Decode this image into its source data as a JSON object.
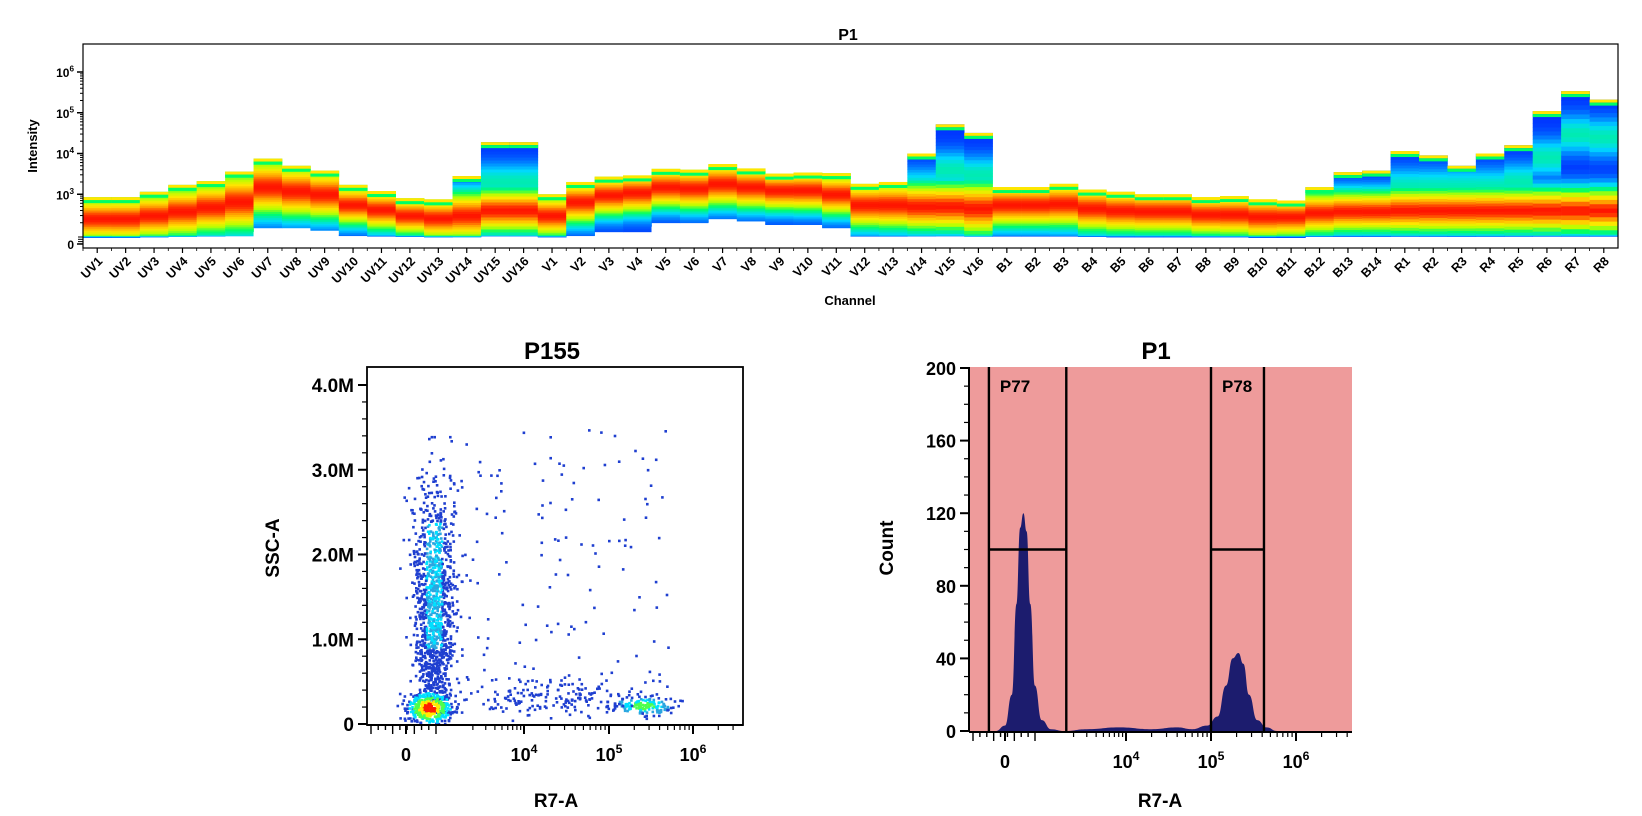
{
  "chart_data": [
    {
      "type": "heatmap",
      "title": "P1",
      "xlabel": "Channel",
      "ylabel": "Intensity",
      "y_scale": "biexponential",
      "y_ticks": [
        {
          "label": "0",
          "value": 0
        },
        {
          "label": "10",
          "sup": "3",
          "value": 1000
        },
        {
          "label": "10",
          "sup": "4",
          "value": 10000
        },
        {
          "label": "10",
          "sup": "5",
          "value": 100000
        },
        {
          "label": "10",
          "sup": "6",
          "value": 1000000
        }
      ],
      "ylim": [
        -100,
        4000000
      ],
      "colormap": [
        "#0033ff",
        "#00d8ff",
        "#00ff66",
        "#b8ff00",
        "#ffe600",
        "#ff9a00",
        "#ff1400"
      ],
      "categories": [
        "UV1",
        "UV2",
        "UV3",
        "UV4",
        "UV5",
        "UV6",
        "UV7",
        "UV8",
        "UV9",
        "UV10",
        "UV11",
        "UV12",
        "UV13",
        "UV14",
        "UV15",
        "UV16",
        "V1",
        "V2",
        "V3",
        "V4",
        "V5",
        "V6",
        "V7",
        "V8",
        "V9",
        "V10",
        "V11",
        "V12",
        "V13",
        "V14",
        "V15",
        "V16",
        "B1",
        "B2",
        "B3",
        "B4",
        "B5",
        "B6",
        "B7",
        "B8",
        "B9",
        "B10",
        "B11",
        "B12",
        "B13",
        "B14",
        "R1",
        "R2",
        "R3",
        "R4",
        "R5",
        "R6",
        "R7",
        "R8"
      ],
      "channels": [
        {
          "lo": 30,
          "p25": 120,
          "med": 250,
          "p75": 420,
          "hi": 850,
          "sec": 0
        },
        {
          "lo": 30,
          "p25": 120,
          "med": 250,
          "p75": 430,
          "hi": 850,
          "sec": 0
        },
        {
          "lo": 40,
          "p25": 150,
          "med": 300,
          "p75": 550,
          "hi": 1150,
          "sec": 0
        },
        {
          "lo": 50,
          "p25": 180,
          "med": 380,
          "p75": 750,
          "hi": 1700,
          "sec": 0
        },
        {
          "lo": 60,
          "p25": 220,
          "med": 480,
          "p75": 950,
          "hi": 2100,
          "sec": 0
        },
        {
          "lo": 70,
          "p25": 280,
          "med": 650,
          "p75": 1500,
          "hi": 3600,
          "sec": 0
        },
        {
          "lo": 150,
          "p25": 600,
          "med": 1500,
          "p75": 3000,
          "hi": 7500,
          "sec": 0
        },
        {
          "lo": 150,
          "p25": 500,
          "med": 1200,
          "p75": 2300,
          "hi": 5000,
          "sec": 0
        },
        {
          "lo": 130,
          "p25": 450,
          "med": 1000,
          "p75": 1900,
          "hi": 3800,
          "sec": 0
        },
        {
          "lo": 80,
          "p25": 280,
          "med": 550,
          "p75": 900,
          "hi": 1700,
          "sec": 0
        },
        {
          "lo": 60,
          "p25": 200,
          "med": 420,
          "p75": 650,
          "hi": 1200,
          "sec": 0
        },
        {
          "lo": 50,
          "p25": 150,
          "med": 300,
          "p75": 450,
          "hi": 800,
          "sec": 0
        },
        {
          "lo": 40,
          "p25": 120,
          "med": 260,
          "p75": 400,
          "hi": 750,
          "sec": 0
        },
        {
          "lo": 40,
          "p25": 150,
          "med": 300,
          "p75": 600,
          "hi": 2800,
          "sec": 0
        },
        {
          "lo": 60,
          "p25": 200,
          "med": 400,
          "p75": 700,
          "hi": 19000,
          "sec": 2000
        },
        {
          "lo": 60,
          "p25": 200,
          "med": 400,
          "p75": 700,
          "hi": 19000,
          "sec": 2000
        },
        {
          "lo": 40,
          "p25": 150,
          "med": 300,
          "p75": 500,
          "hi": 1000,
          "sec": 0
        },
        {
          "lo": 80,
          "p25": 300,
          "med": 650,
          "p75": 1050,
          "hi": 2000,
          "sec": 0
        },
        {
          "lo": 120,
          "p25": 450,
          "med": 950,
          "p75": 1500,
          "hi": 2700,
          "sec": 0
        },
        {
          "lo": 120,
          "p25": 500,
          "med": 1100,
          "p75": 1700,
          "hi": 2900,
          "sec": 0
        },
        {
          "lo": 200,
          "p25": 700,
          "med": 1500,
          "p75": 2400,
          "hi": 4200,
          "sec": 0
        },
        {
          "lo": 200,
          "p25": 650,
          "med": 1400,
          "p75": 2300,
          "hi": 4000,
          "sec": 0
        },
        {
          "lo": 250,
          "p25": 800,
          "med": 1800,
          "p75": 3000,
          "hi": 5500,
          "sec": 0
        },
        {
          "lo": 220,
          "p25": 700,
          "med": 1500,
          "p75": 2500,
          "hi": 4300,
          "sec": 0
        },
        {
          "lo": 180,
          "p25": 600,
          "med": 1250,
          "p75": 1950,
          "hi": 3200,
          "sec": 0
        },
        {
          "lo": 180,
          "p25": 600,
          "med": 1250,
          "p75": 2000,
          "hi": 3400,
          "sec": 0
        },
        {
          "lo": 150,
          "p25": 500,
          "med": 1000,
          "p75": 1700,
          "hi": 3300,
          "sec": 0
        },
        {
          "lo": 60,
          "p25": 250,
          "med": 550,
          "p75": 950,
          "hi": 1800,
          "sec": 0
        },
        {
          "lo": 60,
          "p25": 250,
          "med": 550,
          "p75": 1000,
          "hi": 2000,
          "sec": 0
        },
        {
          "lo": 60,
          "p25": 250,
          "med": 500,
          "p75": 1000,
          "hi": 10000,
          "sec": 1500
        },
        {
          "lo": 60,
          "p25": 250,
          "med": 500,
          "p75": 1000,
          "hi": 52000,
          "sec": 4000
        },
        {
          "lo": 50,
          "p25": 200,
          "med": 450,
          "p75": 900,
          "hi": 32000,
          "sec": 3000
        },
        {
          "lo": 60,
          "p25": 250,
          "med": 550,
          "p75": 900,
          "hi": 1500,
          "sec": 0
        },
        {
          "lo": 60,
          "p25": 250,
          "med": 550,
          "p75": 900,
          "hi": 1500,
          "sec": 0
        },
        {
          "lo": 60,
          "p25": 250,
          "med": 580,
          "p75": 950,
          "hi": 1800,
          "sec": 0
        },
        {
          "lo": 50,
          "p25": 200,
          "med": 450,
          "p75": 750,
          "hi": 1300,
          "sec": 0
        },
        {
          "lo": 40,
          "p25": 180,
          "med": 400,
          "p75": 650,
          "hi": 1150,
          "sec": 0
        },
        {
          "lo": 40,
          "p25": 170,
          "med": 380,
          "p75": 600,
          "hi": 1000,
          "sec": 0
        },
        {
          "lo": 40,
          "p25": 170,
          "med": 380,
          "p75": 600,
          "hi": 1000,
          "sec": 0
        },
        {
          "lo": 40,
          "p25": 150,
          "med": 320,
          "p75": 500,
          "hi": 850,
          "sec": 0
        },
        {
          "lo": 40,
          "p25": 150,
          "med": 320,
          "p75": 520,
          "hi": 900,
          "sec": 0
        },
        {
          "lo": 30,
          "p25": 130,
          "med": 280,
          "p75": 450,
          "hi": 750,
          "sec": 0
        },
        {
          "lo": 30,
          "p25": 130,
          "med": 280,
          "p75": 420,
          "hi": 700,
          "sec": 0
        },
        {
          "lo": 50,
          "p25": 180,
          "med": 350,
          "p75": 600,
          "hi": 1500,
          "sec": 0
        },
        {
          "lo": 50,
          "p25": 200,
          "med": 380,
          "p75": 650,
          "hi": 3500,
          "sec": 0
        },
        {
          "lo": 50,
          "p25": 200,
          "med": 380,
          "p75": 650,
          "hi": 3800,
          "sec": 0
        },
        {
          "lo": 50,
          "p25": 200,
          "med": 400,
          "p75": 700,
          "hi": 11500,
          "sec": 1500
        },
        {
          "lo": 50,
          "p25": 200,
          "med": 400,
          "p75": 700,
          "hi": 9000,
          "sec": 1500
        },
        {
          "lo": 50,
          "p25": 200,
          "med": 400,
          "p75": 700,
          "hi": 5000,
          "sec": 1500
        },
        {
          "lo": 50,
          "p25": 200,
          "med": 400,
          "p75": 700,
          "hi": 10000,
          "sec": 1500
        },
        {
          "lo": 50,
          "p25": 200,
          "med": 400,
          "p75": 700,
          "hi": 16000,
          "sec": 2000
        },
        {
          "lo": 50,
          "p25": 200,
          "med": 400,
          "p75": 700,
          "hi": 110000,
          "sec": 8000
        },
        {
          "lo": 50,
          "p25": 200,
          "med": 400,
          "p75": 700,
          "hi": 340000,
          "sec": 30000
        },
        {
          "lo": 50,
          "p25": 200,
          "med": 400,
          "p75": 700,
          "hi": 210000,
          "sec": 25000
        }
      ]
    },
    {
      "type": "scatter",
      "title": "P155",
      "xlabel": "R7-A",
      "ylabel": "SSC-A",
      "x_scale": "biexponential",
      "x_ticks": [
        {
          "label": "0",
          "value": 0
        },
        {
          "label": "10",
          "sup": "4",
          "value": 10000
        },
        {
          "label": "10",
          "sup": "5",
          "value": 100000
        },
        {
          "label": "10",
          "sup": "6",
          "value": 1000000
        }
      ],
      "xlim": [
        -800,
        3000000
      ],
      "y_ticks": [
        "0",
        "1.0M",
        "2.0M",
        "3.0M",
        "4.0M"
      ],
      "ylim": [
        0,
        4200000
      ],
      "point_color": "#1f3fd0",
      "density_colors": [
        "#1f3fd0",
        "#2aa6e0",
        "#00e0ff",
        "#4dff4d",
        "#ffee00",
        "#ff2000"
      ],
      "populations": [
        {
          "x_center": 600,
          "y_center": 1800000,
          "count": 1250,
          "density": "high"
        },
        {
          "x_center": 500,
          "y_center": 200000,
          "count": 420,
          "density": "peak"
        },
        {
          "x_center": 250000,
          "y_center": 230000,
          "count": 160,
          "density": "medium"
        },
        {
          "x_center": 20000,
          "y_center": 350000,
          "count": 180,
          "density": "sparse"
        },
        {
          "x_center": 15000,
          "y_center": 1800000,
          "count": 120,
          "density": "sparse"
        }
      ]
    },
    {
      "type": "area",
      "title": "P1",
      "xlabel": "R7-A",
      "ylabel": "Count",
      "x_scale": "biexponential",
      "x_ticks": [
        {
          "label": "0",
          "value": 0
        },
        {
          "label": "10",
          "sup": "4",
          "value": 10000
        },
        {
          "label": "10",
          "sup": "5",
          "value": 100000
        },
        {
          "label": "10",
          "sup": "6",
          "value": 1000000
        }
      ],
      "xlim": [
        -800,
        3000000
      ],
      "y_ticks": [
        0,
        40,
        80,
        120,
        160,
        200
      ],
      "ylim": [
        0,
        200
      ],
      "fill_color": "#1c1c6e",
      "background": "#ee9b9b",
      "x": [
        -800,
        -200,
        0,
        150,
        250,
        330,
        400,
        470,
        550,
        650,
        800,
        1000,
        1500,
        3000,
        8000,
        20000,
        40000,
        60000,
        90000,
        120000,
        150000,
        180000,
        210000,
        240000,
        280000,
        350000,
        450000,
        600000,
        900000,
        3000000
      ],
      "values": [
        0,
        0,
        3,
        20,
        70,
        112,
        120,
        110,
        70,
        25,
        6,
        1,
        0,
        1,
        2,
        1,
        2,
        1,
        3,
        8,
        25,
        40,
        43,
        37,
        20,
        6,
        2,
        0,
        0,
        0
      ],
      "gates": [
        {
          "name": "P77",
          "x_min": -350,
          "x_max": 1600,
          "y": 100
        },
        {
          "name": "P78",
          "x_min": 100000,
          "x_max": 420000,
          "y": 100
        }
      ]
    }
  ]
}
